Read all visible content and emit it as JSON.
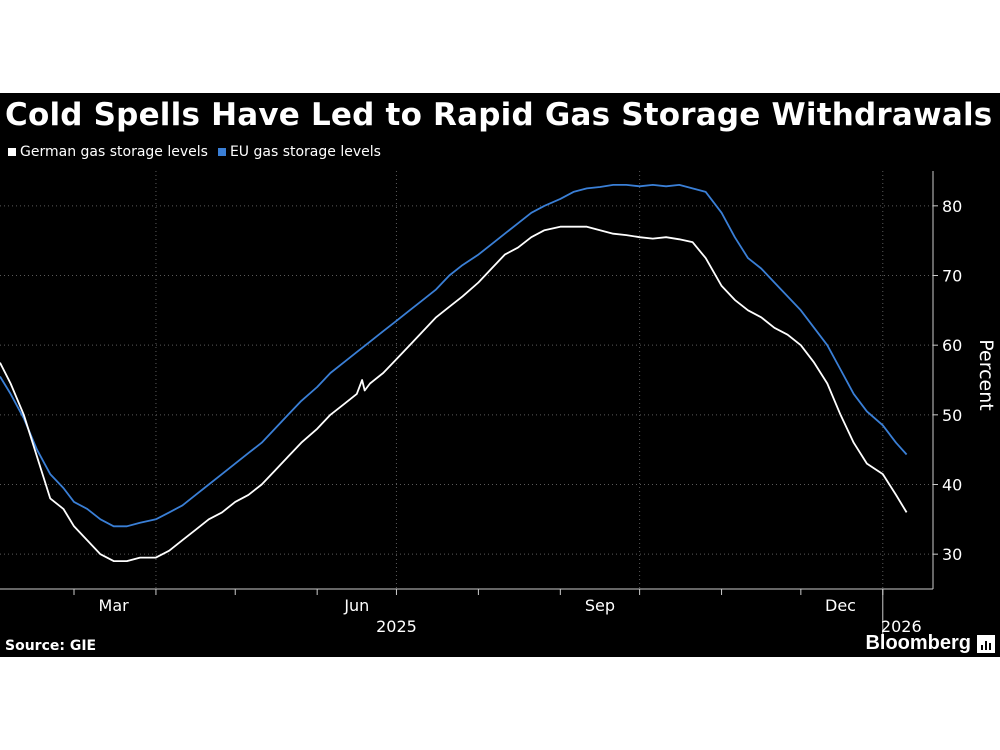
{
  "title": "Cold Spells Have Led to Rapid Gas Storage Withdrawals",
  "legend": [
    {
      "label": "German gas storage levels",
      "color": "#ffffff"
    },
    {
      "label": "EU gas storage levels",
      "color": "#3a7fd6"
    }
  ],
  "source": "Source: GIE",
  "brand": "Bloomberg",
  "chart_data": {
    "type": "line",
    "ylabel": "Percent",
    "xlabel": "",
    "ylim": [
      25,
      85
    ],
    "yticks": [
      30,
      40,
      50,
      60,
      70,
      80
    ],
    "xlim": [
      "2025-02-01",
      "2026-01-20"
    ],
    "month_ticks": [
      {
        "label": "Mar",
        "date": "2025-03-16"
      },
      {
        "label": "Jun",
        "date": "2025-06-16"
      },
      {
        "label": "Sep",
        "date": "2025-09-16"
      },
      {
        "label": "Dec",
        "date": "2025-12-16"
      }
    ],
    "year_labels": [
      {
        "label": "2025",
        "date": "2025-07-01"
      },
      {
        "label": "2026",
        "date": "2026-01-08"
      }
    ],
    "grid": true,
    "legend_position": "top-left",
    "series": [
      {
        "name": "German gas storage levels",
        "color": "#ffffff",
        "points": [
          [
            "2025-02-01",
            57.5
          ],
          [
            "2025-02-05",
            54.5
          ],
          [
            "2025-02-10",
            50.0
          ],
          [
            "2025-02-15",
            44.0
          ],
          [
            "2025-02-20",
            38.0
          ],
          [
            "2025-02-25",
            36.5
          ],
          [
            "2025-03-01",
            34.0
          ],
          [
            "2025-03-06",
            32.0
          ],
          [
            "2025-03-11",
            30.0
          ],
          [
            "2025-03-16",
            29.0
          ],
          [
            "2025-03-21",
            29.0
          ],
          [
            "2025-03-26",
            29.5
          ],
          [
            "2025-04-01",
            29.5
          ],
          [
            "2025-04-06",
            30.5
          ],
          [
            "2025-04-11",
            32.0
          ],
          [
            "2025-04-16",
            33.5
          ],
          [
            "2025-04-21",
            35.0
          ],
          [
            "2025-04-26",
            36.0
          ],
          [
            "2025-05-01",
            37.5
          ],
          [
            "2025-05-06",
            38.5
          ],
          [
            "2025-05-11",
            40.0
          ],
          [
            "2025-05-16",
            42.0
          ],
          [
            "2025-05-21",
            44.0
          ],
          [
            "2025-05-26",
            46.0
          ],
          [
            "2025-06-01",
            48.0
          ],
          [
            "2025-06-06",
            50.0
          ],
          [
            "2025-06-11",
            51.5
          ],
          [
            "2025-06-16",
            53.0
          ],
          [
            "2025-06-18",
            55.0
          ],
          [
            "2025-06-19",
            53.5
          ],
          [
            "2025-06-21",
            54.5
          ],
          [
            "2025-06-26",
            56.0
          ],
          [
            "2025-07-01",
            58.0
          ],
          [
            "2025-07-06",
            60.0
          ],
          [
            "2025-07-11",
            62.0
          ],
          [
            "2025-07-16",
            64.0
          ],
          [
            "2025-07-21",
            65.5
          ],
          [
            "2025-07-26",
            67.0
          ],
          [
            "2025-08-01",
            69.0
          ],
          [
            "2025-08-06",
            71.0
          ],
          [
            "2025-08-11",
            73.0
          ],
          [
            "2025-08-16",
            74.0
          ],
          [
            "2025-08-21",
            75.5
          ],
          [
            "2025-08-26",
            76.5
          ],
          [
            "2025-09-01",
            77.0
          ],
          [
            "2025-09-06",
            77.0
          ],
          [
            "2025-09-11",
            77.0
          ],
          [
            "2025-09-16",
            76.5
          ],
          [
            "2025-09-21",
            76.0
          ],
          [
            "2025-09-26",
            75.8
          ],
          [
            "2025-10-01",
            75.5
          ],
          [
            "2025-10-06",
            75.3
          ],
          [
            "2025-10-11",
            75.5
          ],
          [
            "2025-10-16",
            75.2
          ],
          [
            "2025-10-21",
            74.8
          ],
          [
            "2025-10-26",
            72.5
          ],
          [
            "2025-11-01",
            68.5
          ],
          [
            "2025-11-06",
            66.5
          ],
          [
            "2025-11-11",
            65.0
          ],
          [
            "2025-11-16",
            64.0
          ],
          [
            "2025-11-21",
            62.5
          ],
          [
            "2025-11-26",
            61.5
          ],
          [
            "2025-12-01",
            60.0
          ],
          [
            "2025-12-06",
            57.5
          ],
          [
            "2025-12-11",
            54.5
          ],
          [
            "2025-12-16",
            50.0
          ],
          [
            "2025-12-21",
            46.0
          ],
          [
            "2025-12-26",
            43.0
          ],
          [
            "2026-01-01",
            41.5
          ],
          [
            "2026-01-06",
            38.5
          ],
          [
            "2026-01-10",
            36.0
          ]
        ]
      },
      {
        "name": "EU gas storage levels",
        "color": "#3a7fd6",
        "points": [
          [
            "2025-02-01",
            55.5
          ],
          [
            "2025-02-05",
            53.0
          ],
          [
            "2025-02-10",
            49.5
          ],
          [
            "2025-02-15",
            45.0
          ],
          [
            "2025-02-20",
            41.5
          ],
          [
            "2025-02-25",
            39.5
          ],
          [
            "2025-03-01",
            37.5
          ],
          [
            "2025-03-06",
            36.5
          ],
          [
            "2025-03-11",
            35.0
          ],
          [
            "2025-03-16",
            34.0
          ],
          [
            "2025-03-21",
            34.0
          ],
          [
            "2025-03-26",
            34.5
          ],
          [
            "2025-04-01",
            35.0
          ],
          [
            "2025-04-06",
            36.0
          ],
          [
            "2025-04-11",
            37.0
          ],
          [
            "2025-04-16",
            38.5
          ],
          [
            "2025-04-21",
            40.0
          ],
          [
            "2025-04-26",
            41.5
          ],
          [
            "2025-05-01",
            43.0
          ],
          [
            "2025-05-06",
            44.5
          ],
          [
            "2025-05-11",
            46.0
          ],
          [
            "2025-05-16",
            48.0
          ],
          [
            "2025-05-21",
            50.0
          ],
          [
            "2025-05-26",
            52.0
          ],
          [
            "2025-06-01",
            54.0
          ],
          [
            "2025-06-06",
            56.0
          ],
          [
            "2025-06-11",
            57.5
          ],
          [
            "2025-06-16",
            59.0
          ],
          [
            "2025-06-21",
            60.5
          ],
          [
            "2025-06-26",
            62.0
          ],
          [
            "2025-07-01",
            63.5
          ],
          [
            "2025-07-06",
            65.0
          ],
          [
            "2025-07-11",
            66.5
          ],
          [
            "2025-07-16",
            68.0
          ],
          [
            "2025-07-21",
            70.0
          ],
          [
            "2025-07-26",
            71.5
          ],
          [
            "2025-08-01",
            73.0
          ],
          [
            "2025-08-06",
            74.5
          ],
          [
            "2025-08-11",
            76.0
          ],
          [
            "2025-08-16",
            77.5
          ],
          [
            "2025-08-21",
            79.0
          ],
          [
            "2025-08-26",
            80.0
          ],
          [
            "2025-09-01",
            81.0
          ],
          [
            "2025-09-06",
            82.0
          ],
          [
            "2025-09-11",
            82.5
          ],
          [
            "2025-09-16",
            82.7
          ],
          [
            "2025-09-21",
            83.0
          ],
          [
            "2025-09-26",
            83.0
          ],
          [
            "2025-10-01",
            82.8
          ],
          [
            "2025-10-06",
            83.0
          ],
          [
            "2025-10-11",
            82.8
          ],
          [
            "2025-10-16",
            83.0
          ],
          [
            "2025-10-21",
            82.5
          ],
          [
            "2025-10-26",
            82.0
          ],
          [
            "2025-11-01",
            79.0
          ],
          [
            "2025-11-06",
            75.5
          ],
          [
            "2025-11-11",
            72.5
          ],
          [
            "2025-11-16",
            71.0
          ],
          [
            "2025-11-21",
            69.0
          ],
          [
            "2025-11-26",
            67.0
          ],
          [
            "2025-12-01",
            65.0
          ],
          [
            "2025-12-06",
            62.5
          ],
          [
            "2025-12-11",
            60.0
          ],
          [
            "2025-12-16",
            56.5
          ],
          [
            "2025-12-21",
            53.0
          ],
          [
            "2025-12-26",
            50.5
          ],
          [
            "2026-01-01",
            48.5
          ],
          [
            "2026-01-06",
            46.0
          ],
          [
            "2026-01-10",
            44.3
          ]
        ]
      }
    ]
  }
}
